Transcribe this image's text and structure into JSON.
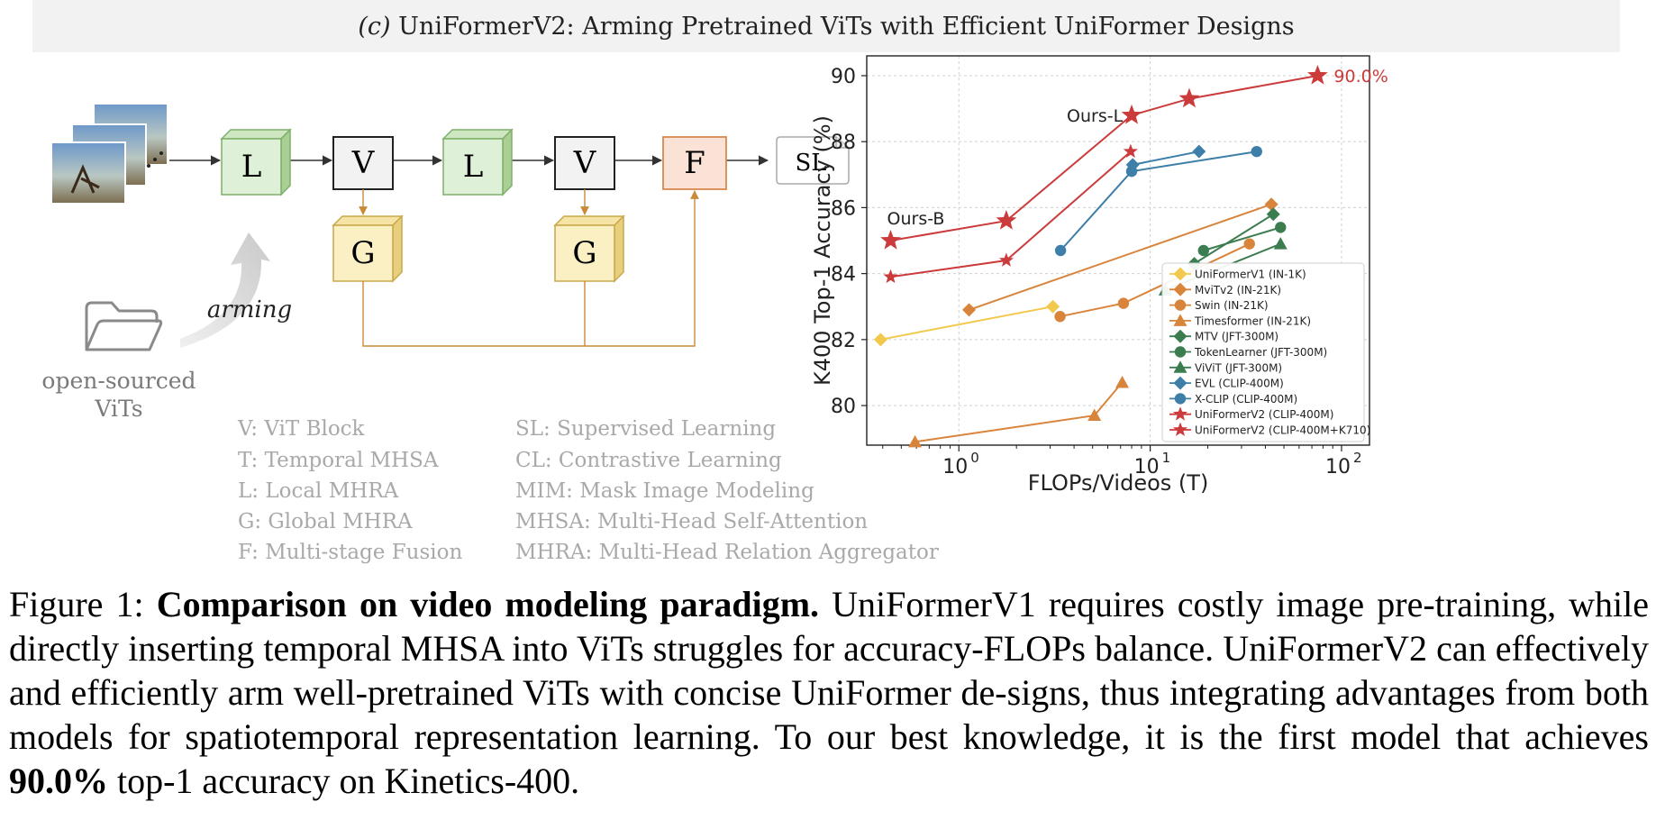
{
  "banner": {
    "prefix": "(c)",
    "title": "UniFormerV2: Arming Pretrained ViTs with Efficient UniFormer Designs"
  },
  "diagram": {
    "blocks": [
      "L",
      "V",
      "L",
      "V",
      "F"
    ],
    "output": "SL",
    "global_blocks": [
      "G",
      "G"
    ],
    "arming_label": "arming",
    "folder_label_line1": "open-sourced",
    "folder_label_line2": "ViTs",
    "legend_left": [
      "V: ViT Block",
      "T: Temporal MHSA",
      "L: Local MHRA",
      "G: Global MHRA",
      "F: Multi-stage Fusion"
    ],
    "legend_right": [
      "SL: Supervised Learning",
      "CL: Contrastive Learning",
      "MIM: Mask Image Modeling",
      "MHSA: Multi-Head Self-Attention",
      "MHRA: Multi-Head Relation Aggregator"
    ],
    "colors": {
      "local": "#dff0d8",
      "local_border": "#7fb069",
      "global": "#fbefc4",
      "global_border": "#c8a84a",
      "fusion": "#fae3d6",
      "fusion_border": "#d9884e",
      "vit": "#f2f2f2",
      "arrow": "#333333",
      "fusion_line": "#c98a3a"
    }
  },
  "chart_data": {
    "type": "scatter",
    "xlabel": "FLOPs/Videos (T)",
    "ylabel": "K400 Top-1 Accuracy (%)",
    "xscale": "log",
    "xlim": [
      0.33,
      140
    ],
    "ylim": [
      78.8,
      90.6
    ],
    "x_ticks": [
      1,
      10,
      100
    ],
    "x_tick_labels": [
      "10",
      "10",
      "10"
    ],
    "x_tick_exponents": [
      "0",
      "1",
      "2"
    ],
    "y_ticks": [
      80,
      82,
      84,
      86,
      88,
      90
    ],
    "y_tick_labels": [
      "80",
      "82",
      "84",
      "86",
      "88",
      "90"
    ],
    "grid": true,
    "legend_position": "lower-right",
    "annotations": {
      "ours_l": "Ours-L",
      "ours_b": "Ours-B",
      "best": "90.0%"
    },
    "series": [
      {
        "name": "UniFormerV1 (IN-1K)",
        "marker": "diamond",
        "color": "#f2c94c",
        "x": [
          0.39,
          3.1
        ],
        "y": [
          82.0,
          83.0
        ]
      },
      {
        "name": "MviTv2 (IN-21K)",
        "marker": "diamond",
        "color": "#d9843b",
        "x": [
          1.13,
          43.0
        ],
        "y": [
          82.9,
          86.1
        ]
      },
      {
        "name": "Swin (IN-21K)",
        "marker": "circle",
        "color": "#d9843b",
        "x": [
          3.38,
          7.25,
          33.0
        ],
        "y": [
          82.7,
          83.1,
          84.9
        ]
      },
      {
        "name": "Timesformer (IN-21K)",
        "marker": "triangle",
        "color": "#d9843b",
        "x": [
          0.59,
          5.11,
          7.14
        ],
        "y": [
          78.9,
          79.7,
          80.7
        ]
      },
      {
        "name": "MTV (JFT-300M)",
        "marker": "diamond",
        "color": "#3b7d4f",
        "x": [
          17.0,
          44.0
        ],
        "y": [
          84.3,
          85.8
        ]
      },
      {
        "name": "TokenLearner (JFT-300M)",
        "marker": "circle",
        "color": "#3b7d4f",
        "x": [
          19.0,
          48.0
        ],
        "y": [
          84.7,
          85.4
        ]
      },
      {
        "name": "ViViT (JFT-300M)",
        "marker": "triangle",
        "color": "#3b7d4f",
        "x": [
          12.0,
          48.0
        ],
        "y": [
          83.5,
          84.9
        ]
      },
      {
        "name": "EVL (CLIP-400M)",
        "marker": "diamond",
        "color": "#3d7fa8",
        "x": [
          8.1,
          18.0
        ],
        "y": [
          87.3,
          87.7
        ]
      },
      {
        "name": "X-CLIP (CLIP-400M)",
        "marker": "circle",
        "color": "#3d7fa8",
        "x": [
          3.4,
          8.0,
          36.0
        ],
        "y": [
          84.7,
          87.1,
          87.7
        ]
      },
      {
        "name": "UniFormerV2 (CLIP-400M)",
        "marker": "star-small",
        "color": "#cc3b3b",
        "x": [
          0.44,
          1.77,
          7.9
        ],
        "y": [
          83.9,
          84.4,
          87.7
        ]
      },
      {
        "name": "UniFormerV2 (CLIP-400M+K710)",
        "marker": "star",
        "color": "#cc3b3b",
        "x": [
          0.44,
          1.77,
          8.0,
          16.0,
          75.0
        ],
        "y": [
          85.0,
          85.6,
          88.8,
          89.3,
          90.0
        ]
      }
    ]
  },
  "caption": {
    "label": "Figure 1:",
    "bold": "Comparison on video modeling paradigm.",
    "text1": "UniFormerV1 requires costly image pre-training, while directly inserting temporal MHSA into ViTs struggles for accuracy-FLOPs balance. UniFormerV2 can effectively and efficiently arm well-pretrained ViTs with concise UniFormer de-signs, thus integrating advantages from both models for spatiotemporal representation learning. To our best knowledge, it is the first model that achieves",
    "bold2": "90.0%",
    "text2": "top-1 accuracy on Kinetics-400."
  }
}
